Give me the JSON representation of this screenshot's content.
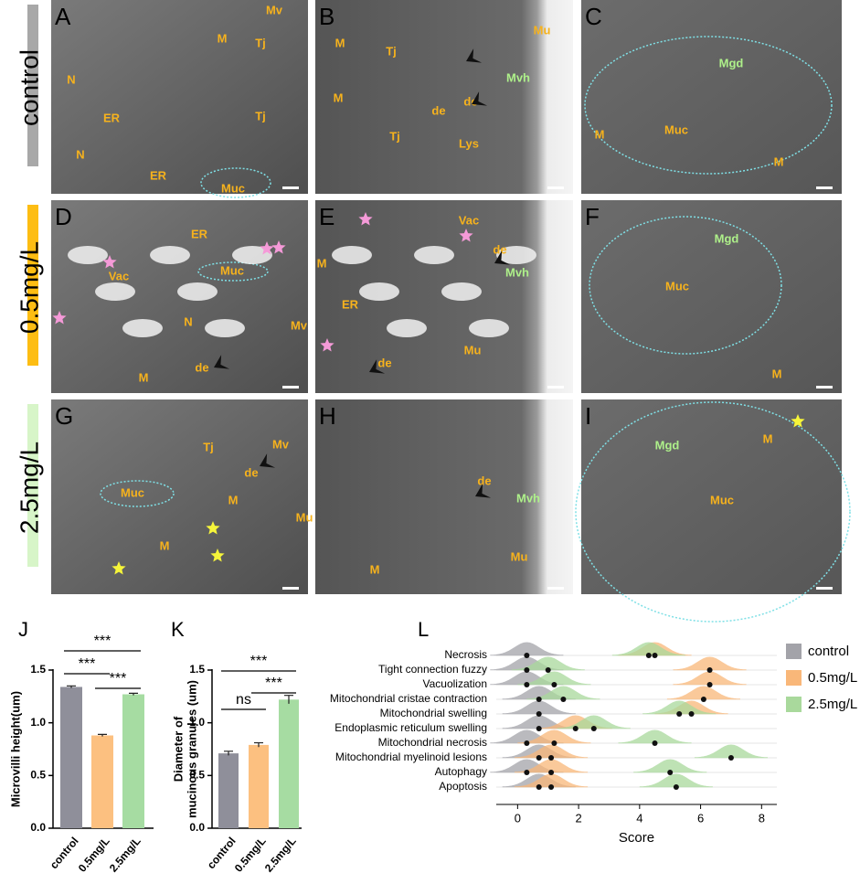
{
  "micrographs": {
    "rows": [
      "control",
      "0.5mg/L",
      "2.5mg/L"
    ],
    "panels": [
      {
        "letter": "A",
        "labels": [
          "Mv",
          "M",
          "Tj",
          "N",
          "ER",
          "Tj",
          "N",
          "ER",
          "Muc"
        ]
      },
      {
        "letter": "B",
        "labels": [
          "Mu",
          "M",
          "Tj",
          "de",
          "Mvh",
          "M",
          "de",
          "Tj",
          "Lys"
        ]
      },
      {
        "letter": "C",
        "labels": [
          "Mgd",
          "Muc",
          "M",
          "M"
        ]
      },
      {
        "letter": "D",
        "labels": [
          "ER",
          "Muc",
          "Vac",
          "N",
          "Mv",
          "de",
          "M"
        ]
      },
      {
        "letter": "E",
        "labels": [
          "Vac",
          "de",
          "Mvh",
          "M",
          "ER",
          "Mu",
          "de"
        ]
      },
      {
        "letter": "F",
        "labels": [
          "Mgd",
          "Muc",
          "M"
        ]
      },
      {
        "letter": "G",
        "labels": [
          "Tj",
          "Mv",
          "de",
          "Muc",
          "M",
          "Mu",
          "M"
        ]
      },
      {
        "letter": "H",
        "labels": [
          "de",
          "Mvh",
          "Mu",
          "M"
        ]
      },
      {
        "letter": "I",
        "labels": [
          "M",
          "Mgd",
          "Muc"
        ]
      }
    ]
  },
  "chart_data": [
    {
      "type": "bar",
      "panel": "J",
      "ylabel": [
        "Microvilli height(um)"
      ],
      "categories": [
        "control",
        "0.5mg/L",
        "2.5mg/L"
      ],
      "values": [
        1.34,
        0.88,
        1.27
      ],
      "errors": [
        0.01,
        0.01,
        0.01
      ],
      "colors": [
        "#8f8f9a",
        "#fcc080",
        "#a6dca2"
      ],
      "ylim": [
        0,
        1.5
      ],
      "yticks": [
        {
          "value": 0,
          "label": "0.0"
        },
        0.5,
        {
          "value": 1,
          "label": "1.0"
        },
        1.5
      ],
      "annotations": [
        "***",
        "***",
        "***"
      ]
    },
    {
      "type": "bar",
      "panel": "K",
      "ylabel": [
        "Diameter of",
        "mucinous granules (um)"
      ],
      "categories": [
        "control",
        "0.5mg/L",
        "2.5mg/L"
      ],
      "values": [
        0.71,
        0.79,
        1.22
      ],
      "errors": [
        0.02,
        0.02,
        0.04
      ],
      "colors": [
        "#8f8f9a",
        "#fcc080",
        "#a6dca2"
      ],
      "ylim": [
        0,
        1.5
      ],
      "yticks": [
        {
          "value": 0,
          "label": "0.0"
        },
        0.5,
        {
          "value": 1,
          "label": "1.0"
        },
        1.5
      ],
      "annotations": [
        "***",
        "***",
        "ns"
      ]
    },
    {
      "type": "ridgeline",
      "panel": "L",
      "xlabel": "Score",
      "categories": [
        "Necrosis",
        "Tight connection fuzzy",
        "Vacuolization",
        "Mitochondrial cristae contraction",
        "Mitochondrial swelling",
        "Endoplasmic reticulum swelling",
        "Mitochondrial necrosis",
        "Mitochondrial myelinoid lesions",
        "Autophagy",
        "Apoptosis"
      ],
      "series": [
        {
          "name": "control",
          "color": "#a3a3a9",
          "values": [
            0.3,
            0.3,
            0.3,
            0.7,
            0.7,
            0.7,
            0.3,
            0.7,
            0.3,
            0.7
          ]
        },
        {
          "name": "0.5mg/L",
          "color": "#f9b779",
          "values": [
            4.5,
            6.3,
            6.3,
            6.1,
            5.7,
            1.9,
            1.2,
            1.1,
            1.1,
            1.1
          ]
        },
        {
          "name": "2.5mg/L",
          "color": "#a9d99c",
          "values": [
            4.3,
            1.0,
            1.2,
            1.5,
            5.3,
            2.5,
            4.5,
            7.0,
            5.0,
            5.2
          ]
        }
      ],
      "xlim": [
        -0.7,
        8.5
      ],
      "xticks": [
        0,
        2,
        4,
        6,
        8
      ]
    }
  ]
}
